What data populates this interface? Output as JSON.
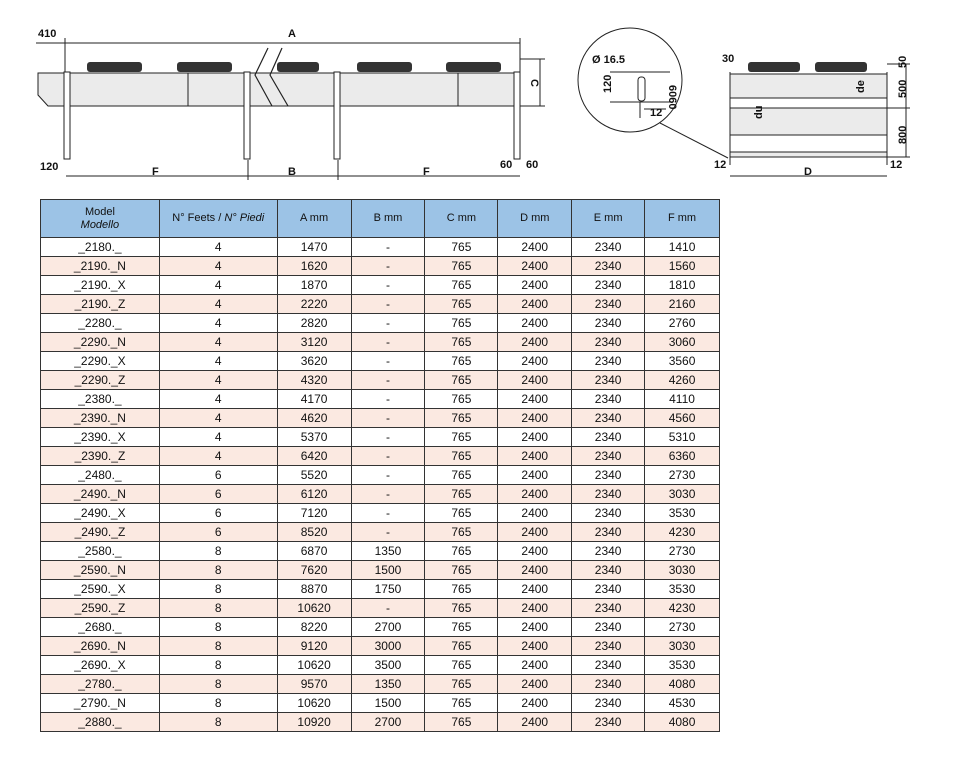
{
  "drawing_side": {
    "dim_410": "410",
    "dim_A": "A",
    "dim_C": "C",
    "dim_120": "120",
    "dim_F1": "F",
    "dim_B": "B",
    "dim_F2": "F",
    "dim_60a": "60",
    "dim_60b": "60"
  },
  "drawing_end": {
    "dim_dia": "Ø 16.5",
    "dim_120": "120",
    "dim_6060": "6060",
    "dim_12a": "12",
    "dim_30": "30",
    "dim_50": "50",
    "dim_500": "500",
    "dim_800": "800",
    "dim_de": "de",
    "dim_du": "du",
    "dim_12b": "12",
    "dim_D": "D",
    "dim_12c": "12"
  },
  "table": {
    "headers": {
      "model": "Model",
      "model_it": "Modello",
      "feet": "N° Feets / ",
      "feet_it": "N° Piedi",
      "a": "A mm",
      "b": "B mm",
      "c": "C mm",
      "d": "D mm",
      "e": "E mm",
      "f": "F mm"
    },
    "rows": [
      [
        "_2180._",
        "4",
        "1470",
        "-",
        "765",
        "2400",
        "2340",
        "1410"
      ],
      [
        "_2190._N",
        "4",
        "1620",
        "-",
        "765",
        "2400",
        "2340",
        "1560"
      ],
      [
        "_2190._X",
        "4",
        "1870",
        "-",
        "765",
        "2400",
        "2340",
        "1810"
      ],
      [
        "_2190._Z",
        "4",
        "2220",
        "-",
        "765",
        "2400",
        "2340",
        "2160"
      ],
      [
        "_2280._",
        "4",
        "2820",
        "-",
        "765",
        "2400",
        "2340",
        "2760"
      ],
      [
        "_2290._N",
        "4",
        "3120",
        "-",
        "765",
        "2400",
        "2340",
        "3060"
      ],
      [
        "_2290._X",
        "4",
        "3620",
        "-",
        "765",
        "2400",
        "2340",
        "3560"
      ],
      [
        "_2290._Z",
        "4",
        "4320",
        "-",
        "765",
        "2400",
        "2340",
        "4260"
      ],
      [
        "_2380._",
        "4",
        "4170",
        "-",
        "765",
        "2400",
        "2340",
        "4110"
      ],
      [
        "_2390._N",
        "4",
        "4620",
        "-",
        "765",
        "2400",
        "2340",
        "4560"
      ],
      [
        "_2390._X",
        "4",
        "5370",
        "-",
        "765",
        "2400",
        "2340",
        "5310"
      ],
      [
        "_2390._Z",
        "4",
        "6420",
        "-",
        "765",
        "2400",
        "2340",
        "6360"
      ],
      [
        "_2480._",
        "6",
        "5520",
        "-",
        "765",
        "2400",
        "2340",
        "2730"
      ],
      [
        "_2490._N",
        "6",
        "6120",
        "-",
        "765",
        "2400",
        "2340",
        "3030"
      ],
      [
        "_2490._X",
        "6",
        "7120",
        "-",
        "765",
        "2400",
        "2340",
        "3530"
      ],
      [
        "_2490._Z",
        "6",
        "8520",
        "-",
        "765",
        "2400",
        "2340",
        "4230"
      ],
      [
        "_2580._",
        "8",
        "6870",
        "1350",
        "765",
        "2400",
        "2340",
        "2730"
      ],
      [
        "_2590._N",
        "8",
        "7620",
        "1500",
        "765",
        "2400",
        "2340",
        "3030"
      ],
      [
        "_2590._X",
        "8",
        "8870",
        "1750",
        "765",
        "2400",
        "2340",
        "3530"
      ],
      [
        "_2590._Z",
        "8",
        "10620",
        "-",
        "765",
        "2400",
        "2340",
        "4230"
      ],
      [
        "_2680._",
        "8",
        "8220",
        "2700",
        "765",
        "2400",
        "2340",
        "2730"
      ],
      [
        "_2690._N",
        "8",
        "9120",
        "3000",
        "765",
        "2400",
        "2340",
        "3030"
      ],
      [
        "_2690._X",
        "8",
        "10620",
        "3500",
        "765",
        "2400",
        "2340",
        "3530"
      ],
      [
        "_2780._",
        "8",
        "9570",
        "1350",
        "765",
        "2400",
        "2340",
        "4080"
      ],
      [
        "_2790._N",
        "8",
        "10620",
        "1500",
        "765",
        "2400",
        "2340",
        "4530"
      ],
      [
        "_2880._",
        "8",
        "10920",
        "2700",
        "765",
        "2400",
        "2340",
        "4080"
      ]
    ],
    "colors": {
      "header": "#9cc3e6",
      "alt_row": "#fbe9e1"
    }
  }
}
